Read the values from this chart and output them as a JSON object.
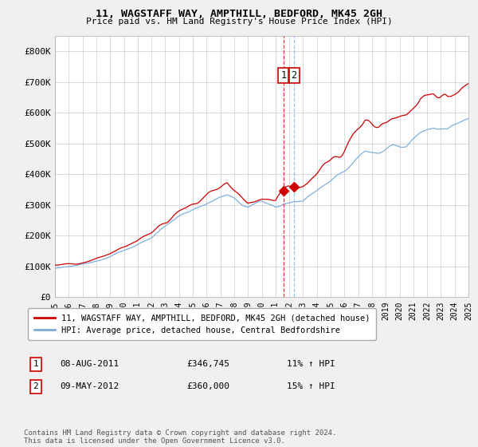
{
  "title": "11, WAGSTAFF WAY, AMPTHILL, BEDFORD, MK45 2GH",
  "subtitle": "Price paid vs. HM Land Registry's House Price Index (HPI)",
  "red_label": "11, WAGSTAFF WAY, AMPTHILL, BEDFORD, MK45 2GH (detached house)",
  "blue_label": "HPI: Average price, detached house, Central Bedfordshire",
  "transaction1_date": "08-AUG-2011",
  "transaction1_price": "£346,745",
  "transaction1_hpi": "11% ↑ HPI",
  "transaction2_date": "09-MAY-2012",
  "transaction2_price": "£360,000",
  "transaction2_hpi": "15% ↑ HPI",
  "footnote": "Contains HM Land Registry data © Crown copyright and database right 2024.\nThis data is licensed under the Open Government Licence v3.0.",
  "red_color": "#cc0000",
  "blue_color": "#7aabdc",
  "background_color": "#f0f0f0",
  "plot_bg_color": "#ffffff",
  "grid_color": "#cccccc",
  "ylim": [
    0,
    850000
  ],
  "yticks": [
    0,
    100000,
    200000,
    300000,
    400000,
    500000,
    600000,
    700000,
    800000
  ],
  "ytick_labels": [
    "£0",
    "£100K",
    "£200K",
    "£300K",
    "£400K",
    "£500K",
    "£600K",
    "£700K",
    "£800K"
  ],
  "transaction1_year": 2011.58,
  "transaction2_year": 2012.35,
  "transaction1_value": 346745,
  "transaction2_value": 360000
}
